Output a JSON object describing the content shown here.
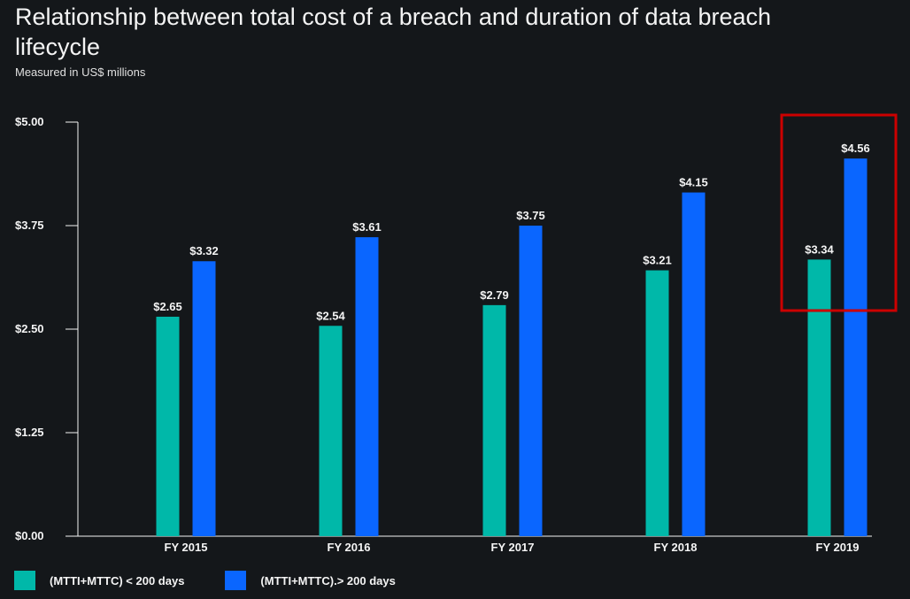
{
  "chart_data": {
    "type": "bar",
    "title": "Relationship between total cost of a breach and duration of data breach lifecycle",
    "subtitle": "Measured in US$ millions",
    "categories": [
      "FY 2015",
      "FY 2016",
      "FY 2017",
      "FY 2018",
      "FY 2019"
    ],
    "series": [
      {
        "name": "(MTTI+MTTC) < 200 days",
        "color": "#00b8a9",
        "values": [
          2.65,
          2.54,
          2.79,
          3.21,
          3.34
        ],
        "labels": [
          "$2.65",
          "$2.54",
          "$2.79",
          "$3.21",
          "$3.34"
        ]
      },
      {
        "name": "(MTTI+MTTC).> 200 days",
        "color": "#0a66ff",
        "values": [
          3.32,
          3.61,
          3.75,
          4.15,
          4.56
        ],
        "labels": [
          "$3.32",
          "$3.61",
          "$3.75",
          "$4.15",
          "$4.56"
        ]
      }
    ],
    "yticks": [
      0,
      1.25,
      2.5,
      3.75,
      5.0
    ],
    "ytick_labels": [
      "$0.00",
      "$1.25",
      "$2.50",
      "$3.75",
      "$5.00"
    ],
    "ylim": [
      0,
      5
    ],
    "xlabel": "",
    "ylabel": "",
    "legend_position": "bottom-left",
    "highlight": {
      "category": "FY 2019",
      "color": "#cc0000"
    }
  }
}
